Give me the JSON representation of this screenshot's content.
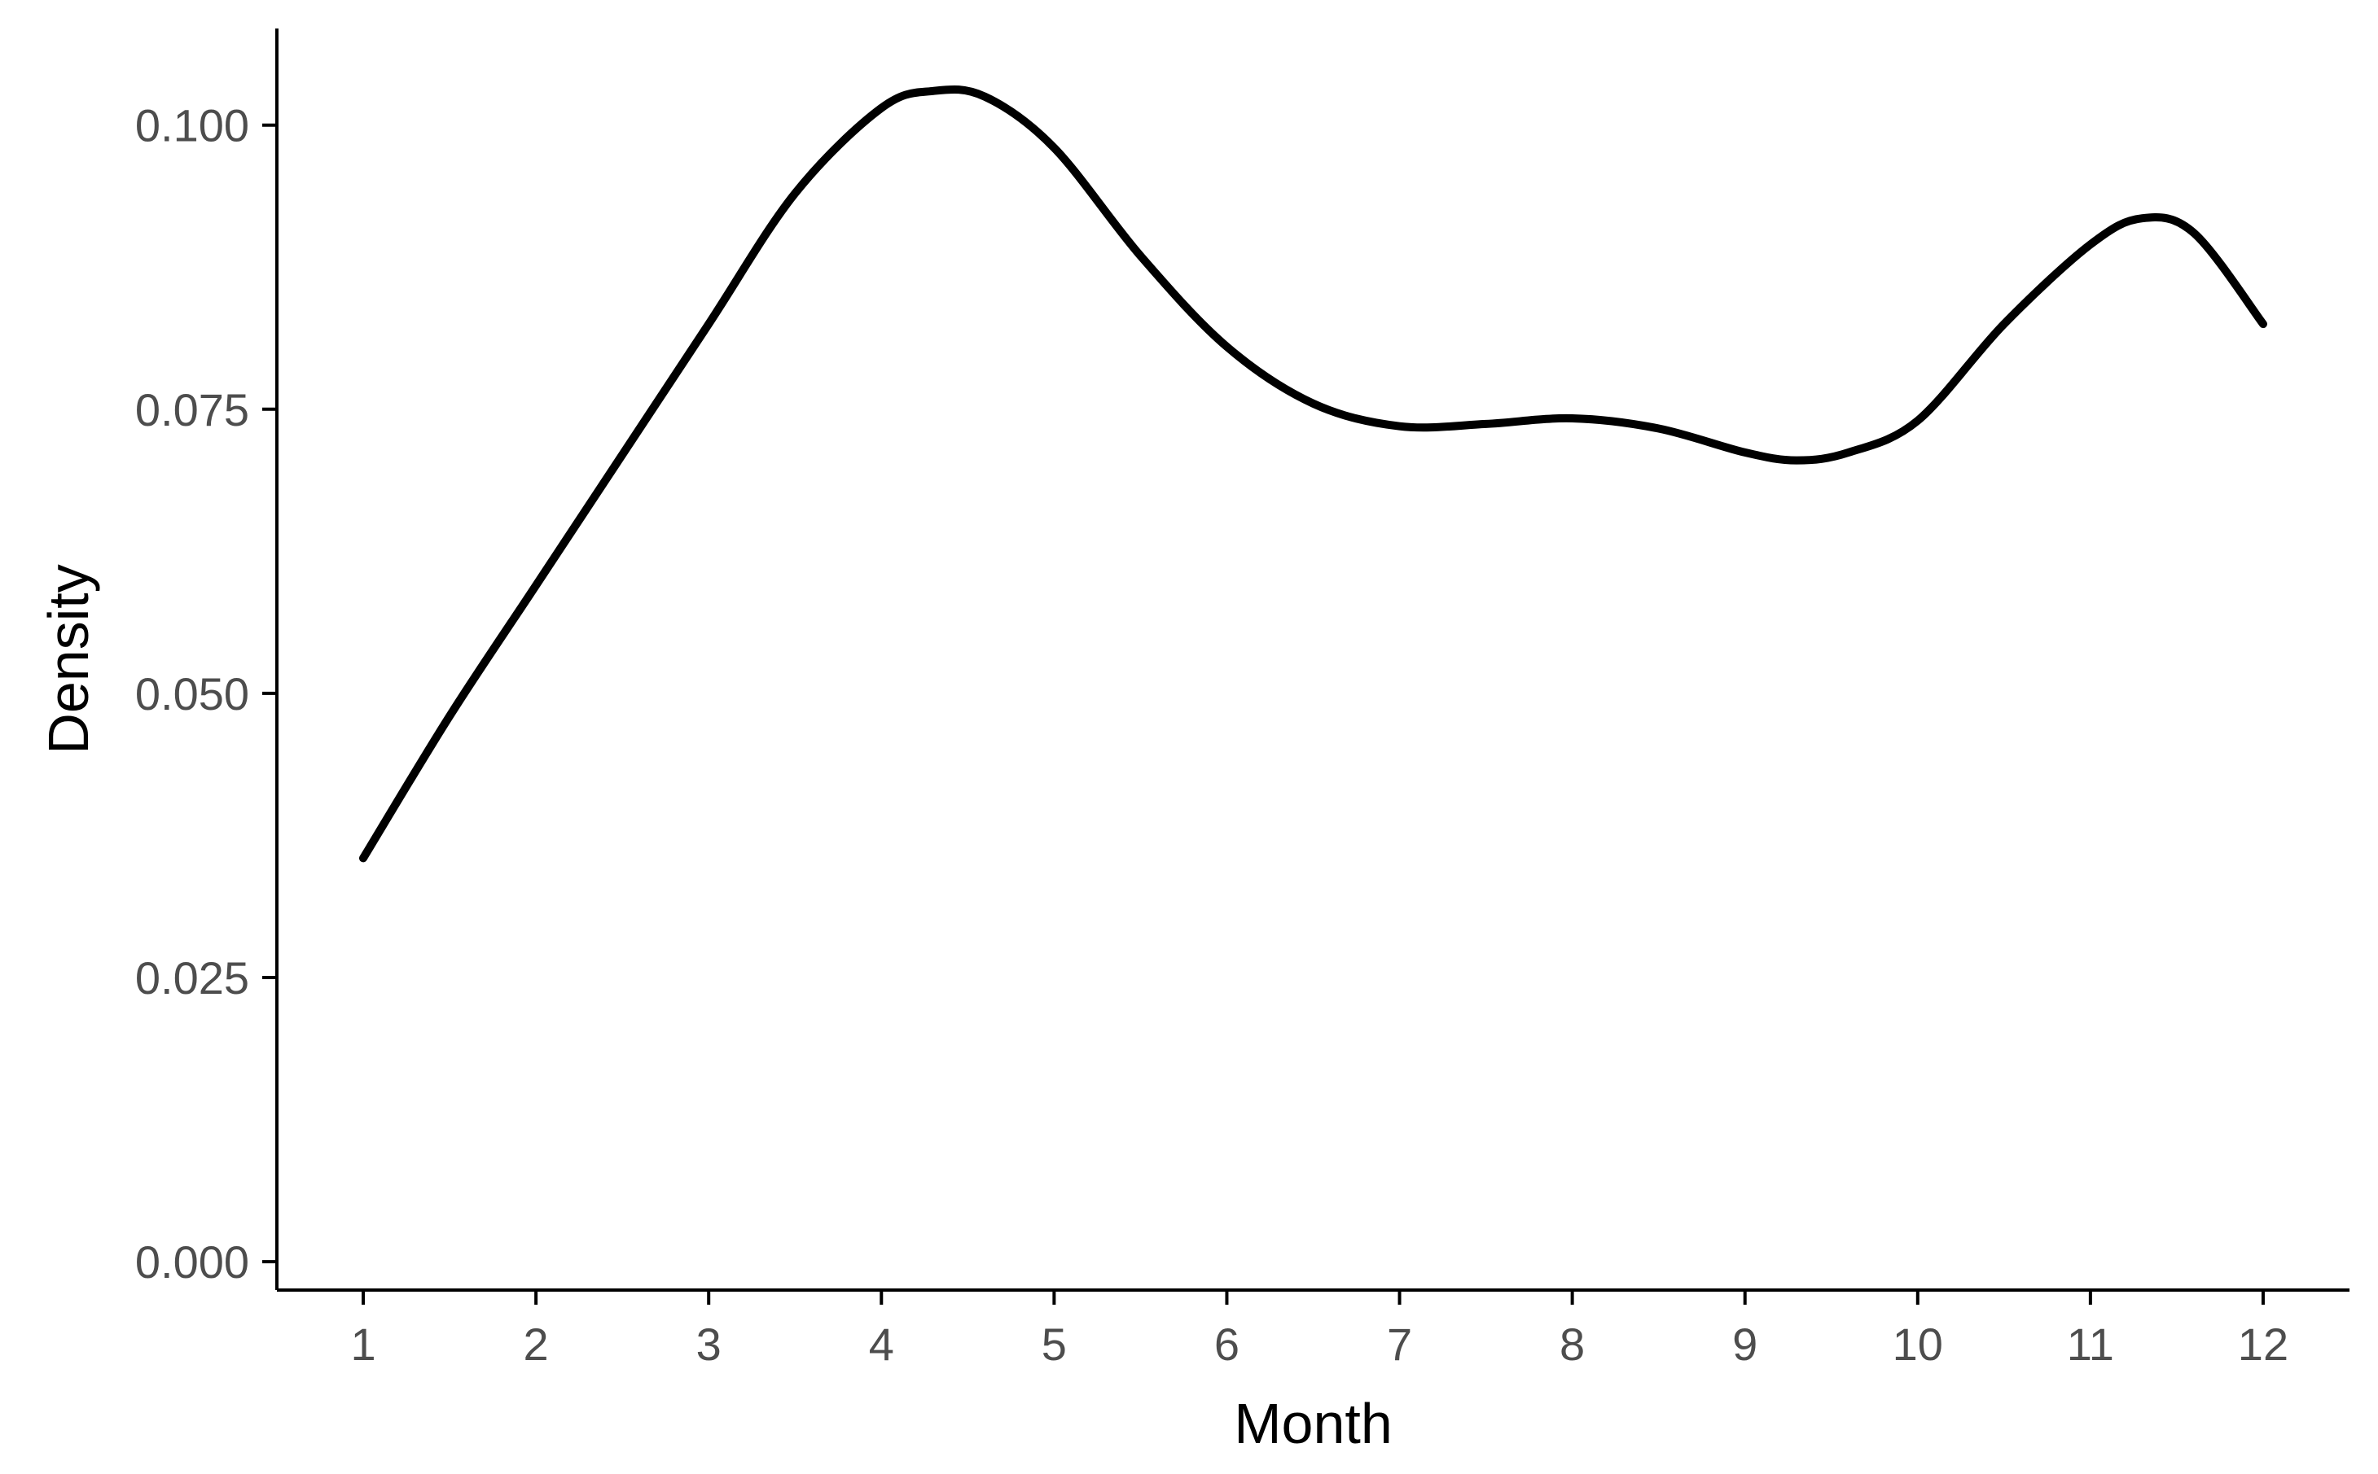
{
  "chart_data": {
    "type": "line",
    "title": "",
    "xlabel": "Month",
    "ylabel": "Density",
    "xlim": [
      0.5,
      12.5
    ],
    "ylim": [
      -0.0025,
      0.1085
    ],
    "x_ticks": [
      1,
      2,
      3,
      4,
      5,
      6,
      7,
      8,
      9,
      10,
      11,
      12
    ],
    "x_tick_labels": [
      "1",
      "2",
      "3",
      "4",
      "5",
      "6",
      "7",
      "8",
      "9",
      "10",
      "11",
      "12"
    ],
    "y_ticks": [
      0.0,
      0.025,
      0.05,
      0.075,
      0.1
    ],
    "y_tick_labels": [
      "0.000",
      "0.025",
      "0.050",
      "0.075",
      "0.100"
    ],
    "grid": false,
    "line_color": "#000000",
    "series": [
      {
        "x": [
          1.0,
          1.5,
          2.0,
          2.5,
          3.0,
          3.5,
          4.0,
          4.3,
          4.6,
          5.0,
          5.5,
          6.0,
          6.5,
          7.0,
          7.5,
          8.0,
          8.5,
          9.0,
          9.3,
          9.6,
          10.0,
          10.5,
          11.0,
          11.3,
          11.6,
          12.0
        ],
        "y": [
          0.0355,
          0.048,
          0.0595,
          0.071,
          0.0825,
          0.094,
          0.1015,
          0.103,
          0.1025,
          0.098,
          0.0885,
          0.0805,
          0.0755,
          0.0735,
          0.0737,
          0.0742,
          0.0733,
          0.0712,
          0.0705,
          0.0712,
          0.074,
          0.0825,
          0.0895,
          0.0918,
          0.0905,
          0.0825
        ]
      }
    ]
  }
}
